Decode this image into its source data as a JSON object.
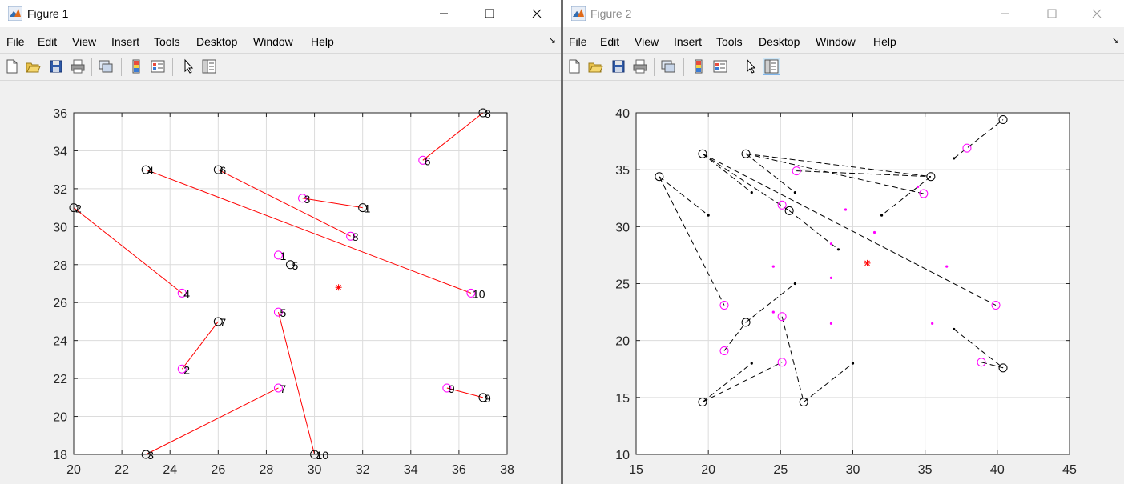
{
  "menus": [
    "File",
    "Edit",
    "View",
    "Insert",
    "Tools",
    "Desktop",
    "Window",
    "Help"
  ],
  "toolbar_icons": [
    "new-figure-icon",
    "open-file-icon",
    "save-icon",
    "print-icon",
    "link-plot-icon",
    "colorbar-icon",
    "legend-icon",
    "edit-plot-pointer-icon",
    "property-inspector-icon"
  ],
  "colors": {
    "red": "#ff0000",
    "magenta": "#ff00ff",
    "black": "#000000",
    "grid": "#dcdcdc"
  },
  "figure1": {
    "title": "Figure 1",
    "state": "active",
    "chart_data": {
      "type": "scatter",
      "title": "",
      "xlabel": "",
      "ylabel": "",
      "xlim": [
        20,
        38
      ],
      "ylim": [
        18,
        36
      ],
      "xticks": [
        20,
        22,
        24,
        26,
        28,
        30,
        32,
        34,
        36,
        38
      ],
      "yticks": [
        18,
        20,
        22,
        24,
        26,
        28,
        30,
        32,
        34,
        36
      ],
      "grid": true,
      "center_marker": {
        "x": 31,
        "y": 26.8
      },
      "series": [
        {
          "marker": "black circle",
          "points": [
            {
              "label": "1",
              "x": 32,
              "y": 31
            },
            {
              "label": "2",
              "x": 20,
              "y": 31
            },
            {
              "label": "3",
              "x": 23,
              "y": 18
            },
            {
              "label": "4",
              "x": 23,
              "y": 33
            },
            {
              "label": "5",
              "x": 29,
              "y": 28
            },
            {
              "label": "6",
              "x": 26,
              "y": 33
            },
            {
              "label": "7",
              "x": 26,
              "y": 25
            },
            {
              "label": "8",
              "x": 37,
              "y": 36
            },
            {
              "label": "9",
              "x": 37,
              "y": 21
            },
            {
              "label": "10",
              "x": 30,
              "y": 18
            }
          ]
        },
        {
          "marker": "magenta circle",
          "points": [
            {
              "label": "1",
              "x": 28.5,
              "y": 28.5
            },
            {
              "label": "2",
              "x": 24.5,
              "y": 22.5
            },
            {
              "label": "3",
              "x": 29.5,
              "y": 31.5
            },
            {
              "label": "4",
              "x": 24.5,
              "y": 26.5
            },
            {
              "label": "5",
              "x": 28.5,
              "y": 25.5
            },
            {
              "label": "6",
              "x": 34.5,
              "y": 33.5
            },
            {
              "label": "7",
              "x": 28.5,
              "y": 21.5
            },
            {
              "label": "8",
              "x": 31.5,
              "y": 29.5
            },
            {
              "label": "9",
              "x": 35.5,
              "y": 21.5
            },
            {
              "label": "10",
              "x": 36.5,
              "y": 26.5
            }
          ]
        }
      ],
      "links": [
        [
          [
            32,
            31
          ],
          [
            29.5,
            31.5
          ]
        ],
        [
          [
            20,
            31
          ],
          [
            24.5,
            26.5
          ]
        ],
        [
          [
            23,
            18
          ],
          [
            28.5,
            21.5
          ]
        ],
        [
          [
            23,
            33
          ],
          [
            36.5,
            26.5
          ]
        ],
        [
          [
            26,
            33
          ],
          [
            31.5,
            29.5
          ]
        ],
        [
          [
            26,
            25
          ],
          [
            24.5,
            22.5
          ]
        ],
        [
          [
            37,
            36
          ],
          [
            34.5,
            33.5
          ]
        ],
        [
          [
            37,
            21
          ],
          [
            35.5,
            21.5
          ]
        ],
        [
          [
            30,
            18
          ],
          [
            28.5,
            25.5
          ]
        ]
      ]
    }
  },
  "figure2": {
    "title": "Figure 2",
    "state": "inactive",
    "chart_data": {
      "type": "scatter",
      "title": "",
      "xlabel": "",
      "ylabel": "",
      "xlim": [
        15,
        45
      ],
      "ylim": [
        10,
        40
      ],
      "xticks": [
        15,
        20,
        25,
        30,
        35,
        40,
        45
      ],
      "yticks": [
        10,
        15,
        20,
        25,
        30,
        35,
        40
      ],
      "grid": true,
      "center_marker": {
        "x": 31,
        "y": 26.8
      },
      "series": [
        {
          "marker": "black circle",
          "points": [
            {
              "x": 16.6,
              "y": 34.4
            },
            {
              "x": 19.6,
              "y": 36.4
            },
            {
              "x": 22.6,
              "y": 36.4
            },
            {
              "x": 25.6,
              "y": 31.4
            },
            {
              "x": 35.4,
              "y": 34.4
            },
            {
              "x": 40.4,
              "y": 39.4
            },
            {
              "x": 22.6,
              "y": 21.6
            },
            {
              "x": 19.6,
              "y": 14.6
            },
            {
              "x": 26.6,
              "y": 14.6
            },
            {
              "x": 40.4,
              "y": 17.6
            }
          ]
        },
        {
          "marker": "magenta circle",
          "points": [
            {
              "x": 26.1,
              "y": 34.9
            },
            {
              "x": 34.9,
              "y": 32.9
            },
            {
              "x": 37.9,
              "y": 36.9
            },
            {
              "x": 25.1,
              "y": 31.9
            },
            {
              "x": 21.1,
              "y": 23.1
            },
            {
              "x": 39.9,
              "y": 23.1
            },
            {
              "x": 21.1,
              "y": 19.1
            },
            {
              "x": 25.1,
              "y": 22.1
            },
            {
              "x": 25.1,
              "y": 18.1
            },
            {
              "x": 38.9,
              "y": 18.1
            }
          ]
        },
        {
          "marker": "black dot",
          "points": [
            {
              "x": 20,
              "y": 31
            },
            {
              "x": 23,
              "y": 33
            },
            {
              "x": 26,
              "y": 33
            },
            {
              "x": 29,
              "y": 28
            },
            {
              "x": 32,
              "y": 31
            },
            {
              "x": 37,
              "y": 36
            },
            {
              "x": 26,
              "y": 25
            },
            {
              "x": 23,
              "y": 18
            },
            {
              "x": 30,
              "y": 18
            },
            {
              "x": 37,
              "y": 21
            }
          ]
        },
        {
          "marker": "magenta dot",
          "points": [
            {
              "x": 29.5,
              "y": 31.5
            },
            {
              "x": 31.5,
              "y": 29.5
            },
            {
              "x": 24.5,
              "y": 26.5
            },
            {
              "x": 28.5,
              "y": 25.5
            },
            {
              "x": 36.5,
              "y": 26.5
            },
            {
              "x": 24.5,
              "y": 22.5
            },
            {
              "x": 28.5,
              "y": 21.5
            },
            {
              "x": 35.5,
              "y": 21.5
            },
            {
              "x": 28.5,
              "y": 28.5
            },
            {
              "x": 34.5,
              "y": 33.5
            }
          ]
        }
      ],
      "links": [
        [
          [
            16.6,
            34.4
          ],
          [
            20,
            31
          ]
        ],
        [
          [
            16.6,
            34.4
          ],
          [
            21.1,
            23.1
          ]
        ],
        [
          [
            19.6,
            36.4
          ],
          [
            23,
            33
          ]
        ],
        [
          [
            19.6,
            36.4
          ],
          [
            39.9,
            23.1
          ]
        ],
        [
          [
            19.6,
            36.4
          ],
          [
            25.6,
            31.4
          ]
        ],
        [
          [
            25.6,
            31.4
          ],
          [
            29,
            28
          ]
        ],
        [
          [
            22.6,
            36.4
          ],
          [
            26,
            33
          ]
        ],
        [
          [
            22.6,
            36.4
          ],
          [
            35.4,
            34.4
          ]
        ],
        [
          [
            26.1,
            34.9
          ],
          [
            35.4,
            34.4
          ]
        ],
        [
          [
            34.9,
            32.9
          ],
          [
            22.6,
            36.4
          ]
        ],
        [
          [
            35.4,
            34.4
          ],
          [
            32,
            31
          ]
        ],
        [
          [
            37,
            36
          ],
          [
            40.4,
            39.4
          ]
        ],
        [
          [
            21.1,
            19.1
          ],
          [
            22.6,
            21.6
          ]
        ],
        [
          [
            22.6,
            21.6
          ],
          [
            26,
            25
          ]
        ],
        [
          [
            19.6,
            14.6
          ],
          [
            23,
            18
          ]
        ],
        [
          [
            19.6,
            14.6
          ],
          [
            25.1,
            18.1
          ]
        ],
        [
          [
            25.1,
            22.1
          ],
          [
            26.6,
            14.6
          ]
        ],
        [
          [
            26.6,
            14.6
          ],
          [
            30,
            18
          ]
        ],
        [
          [
            37,
            21
          ],
          [
            40.4,
            17.6
          ]
        ],
        [
          [
            38.9,
            18.1
          ],
          [
            40.4,
            17.6
          ]
        ]
      ]
    }
  }
}
